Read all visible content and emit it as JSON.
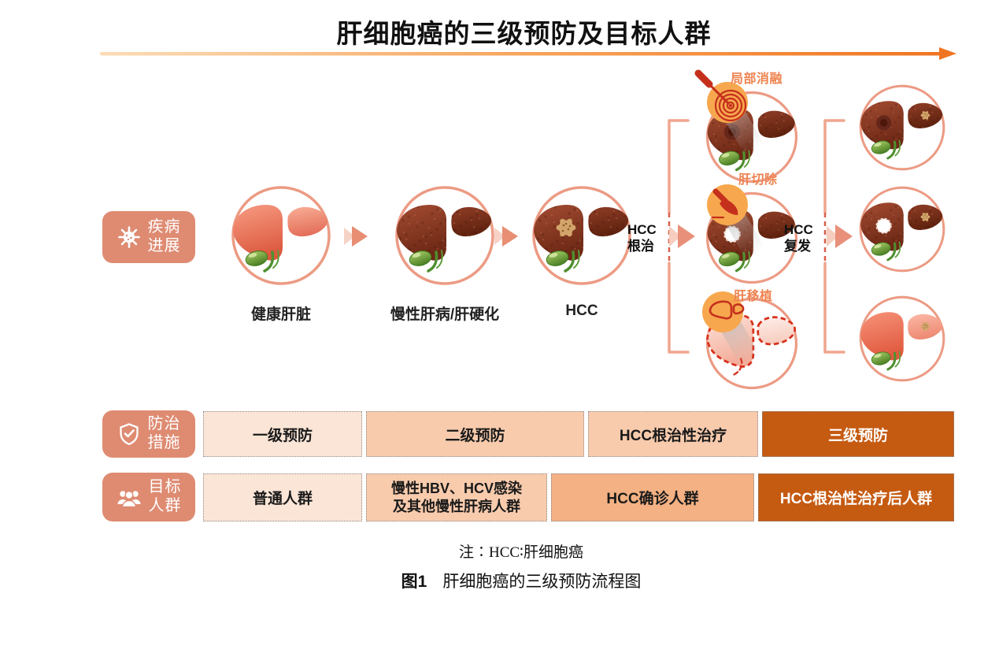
{
  "title": "肝细胞癌的三级预防及目标人群",
  "row_labels": {
    "disease_progression": {
      "line1": "疾病",
      "line2": "进展"
    },
    "measures": {
      "line1": "防治",
      "line2": "措施"
    },
    "population": {
      "line1": "目标",
      "line2": "人群"
    }
  },
  "stages": {
    "healthy": "健康肝脏",
    "chronic": "慢性肝病/肝硬化",
    "hcc": "HCC"
  },
  "transitions": {
    "radical": {
      "line1": "HCC",
      "line2": "根治"
    },
    "relapse": {
      "line1": "HCC",
      "line2": "复发"
    }
  },
  "treatments": {
    "ablation": "局部消融",
    "resection": "肝切除",
    "transplant": "肝移植"
  },
  "measures_boxes": {
    "primary": "一级预防",
    "secondary": "二级预防",
    "radical": "HCC根治性治疗",
    "tertiary": "三级预防"
  },
  "population_boxes": {
    "general": "普通人群",
    "chronic": "慢性HBV、HCV感染\n及其他慢性肝病人群",
    "diagnosed": "HCC确诊人群",
    "post_treatment": "HCC根治性治疗后人群"
  },
  "footnote": "注∶HCC∶肝细胞癌",
  "caption": {
    "label": "图1",
    "text": "肝细胞癌的三级预防流程图"
  },
  "colors": {
    "pill_salmon": "#DE8B72",
    "ring_salmon": "#EC9B84",
    "icon_circle_orange": "#F7A84E",
    "treatment_label_orange": "#EE8350",
    "header_arrow_orange": "#F07522",
    "box_light": "#FBE5D6",
    "box_medium": "#F8CBAD",
    "box_medium_dark": "#F4B183",
    "box_dark": "#C55A11",
    "dashed_red": "#D9604B",
    "healthy_liver": "#DC5A3F",
    "diseased_liver": "#6C2815"
  },
  "icons": {
    "disease": "virus-icon",
    "measures": "shield-check-icon",
    "population": "people-group-icon",
    "ablation": "ablation-probe-icon",
    "resection": "scalpel-icon",
    "transplant": "liver-outline-icon",
    "flow": "chevron-arrow-icon"
  }
}
